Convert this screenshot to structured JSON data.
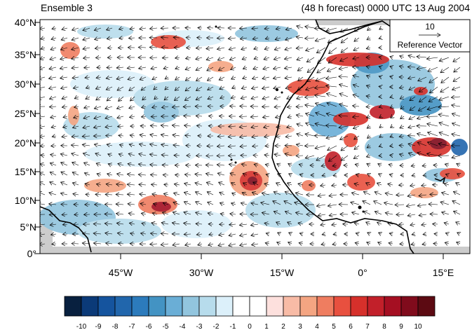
{
  "figure": {
    "left_title": "Ensemble 3",
    "right_title": "(48 h forecast) 0000 UTC 13 Aug 2004"
  },
  "map": {
    "lon_range": [
      -60,
      20
    ],
    "lat_range": [
      0,
      40
    ],
    "lat_ticks": [
      "0°",
      "5°N",
      "10°N",
      "15°N",
      "20°N",
      "25°N",
      "30°N",
      "35°N",
      "40°N"
    ],
    "lon_ticks": [
      "45°W",
      "30°W",
      "15°W",
      "0°",
      "15°E"
    ],
    "land_fill": "#ffffff",
    "missing_fill": "#cccccc",
    "coastline_color": "#000000"
  },
  "reference_vector": {
    "magnitude": "10",
    "label": "Reference Vector"
  },
  "colorbar": {
    "labels": [
      "-10",
      "-9",
      "-8",
      "-7",
      "-6",
      "-5",
      "-4",
      "-3",
      "-2",
      "-1",
      "0",
      "1",
      "2",
      "3",
      "4",
      "5",
      "6",
      "7",
      "8",
      "9",
      "10"
    ],
    "colors": [
      "#08203f",
      "#0b3a78",
      "#15549e",
      "#2166ac",
      "#2c7bbc",
      "#4393c3",
      "#6aaed6",
      "#92c5de",
      "#b7dcec",
      "#dcf0fa",
      "#ffffff",
      "#ffffff",
      "#fde0dd",
      "#f8bba6",
      "#f4a582",
      "#ef7d60",
      "#e8503f",
      "#d6302b",
      "#c2202a",
      "#a50f22",
      "#800b1c",
      "#5c0a12"
    ]
  }
}
